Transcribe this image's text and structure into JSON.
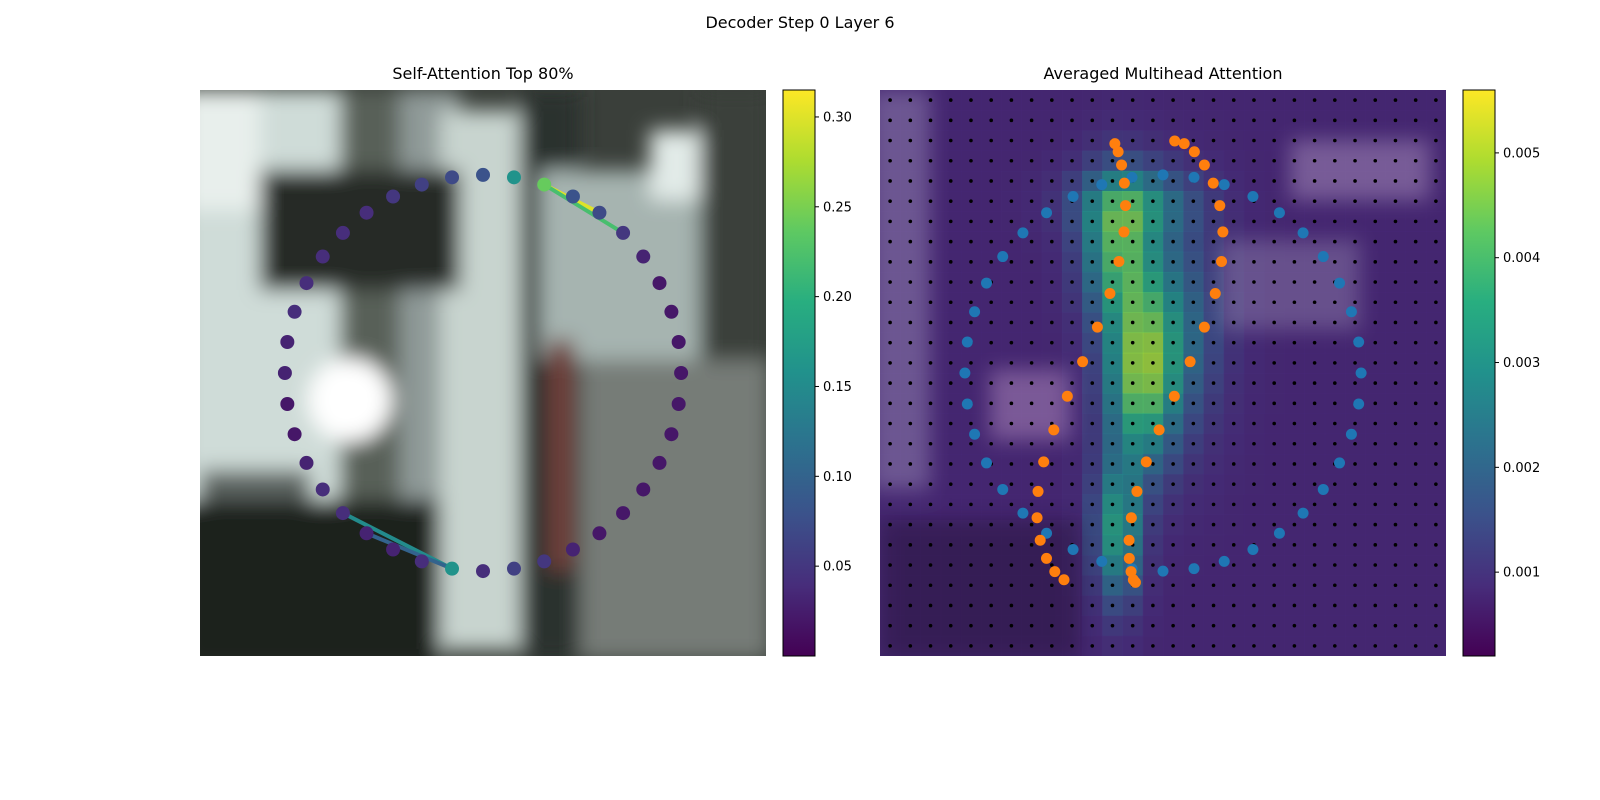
{
  "figure": {
    "title": "Decoder Step 0 Layer 6"
  },
  "chart_data": [
    {
      "type": "scatter",
      "title": "Self-Attention Top 80%",
      "description_of_background": "blurred street-scene photo crop",
      "xlabel": "",
      "ylabel": "",
      "axes_visible": false,
      "grid": false,
      "legend": "none",
      "colormap": "viridis",
      "colorbar": {
        "min": 0.0,
        "max": 0.315,
        "ticks": [
          0.05,
          0.1,
          0.15,
          0.2,
          0.25,
          0.3
        ],
        "tick_labels": [
          "0.05",
          "0.10",
          "0.15",
          "0.20",
          "0.25",
          "0.30"
        ]
      },
      "contour_points": {
        "count": 40,
        "center": [
          0.5,
          0.5
        ],
        "radius": [
          0.35,
          0.35
        ],
        "values": [
          0.16,
          0.24,
          0.08,
          0.07,
          0.05,
          0.03,
          0.02,
          0.02,
          0.02,
          0.02,
          0.02,
          0.02,
          0.02,
          0.02,
          0.02,
          0.02,
          0.03,
          0.05,
          0.06,
          0.04,
          0.16,
          0.04,
          0.03,
          0.03,
          0.04,
          0.04,
          0.03,
          0.02,
          0.02,
          0.03,
          0.03,
          0.04,
          0.04,
          0.04,
          0.04,
          0.04,
          0.05,
          0.06,
          0.07,
          0.08
        ]
      },
      "attention_links": [
        {
          "from": 1,
          "to": 3,
          "value": 0.3
        },
        {
          "from": 1,
          "to": 4,
          "value": 0.22
        },
        {
          "from": 20,
          "to": 24,
          "value": 0.15
        },
        {
          "from": 20,
          "to": 23,
          "value": 0.1
        }
      ]
    },
    {
      "type": "heatmap",
      "title": "Averaged Multihead Attention",
      "xlabel": "",
      "ylabel": "",
      "axes_visible": false,
      "grid_points": [
        28,
        28
      ],
      "colormap": "viridis",
      "colorbar": {
        "min": 0.0002,
        "max": 0.0056,
        "ticks": [
          0.001,
          0.002,
          0.003,
          0.004,
          0.005
        ],
        "tick_labels": [
          "0.001",
          "0.002",
          "0.003",
          "0.004",
          "0.005"
        ]
      },
      "hotspots": [
        {
          "cx": 0.42,
          "cy": 0.28,
          "sx": 0.06,
          "sy": 0.12,
          "v": 0.0036
        },
        {
          "cx": 0.46,
          "cy": 0.5,
          "sx": 0.06,
          "sy": 0.16,
          "v": 0.0042
        },
        {
          "cx": 0.42,
          "cy": 0.78,
          "sx": 0.04,
          "sy": 0.12,
          "v": 0.0034
        },
        {
          "cx": 0.45,
          "cy": 0.2,
          "sx": 0.1,
          "sy": 0.06,
          "v": 0.0025
        },
        {
          "cx": 0.52,
          "cy": 0.42,
          "sx": 0.08,
          "sy": 0.18,
          "v": 0.0022
        }
      ],
      "background_value": 0.0008,
      "series": [
        {
          "color": "#1f77b4",
          "shape": "blue ring contour",
          "center": [
            0.5,
            0.5
          ],
          "radius": [
            0.35,
            0.35
          ],
          "count": 40
        },
        {
          "color": "#ff7f0e",
          "shape": "orange S-shaped contour",
          "count": 40
        }
      ]
    }
  ]
}
